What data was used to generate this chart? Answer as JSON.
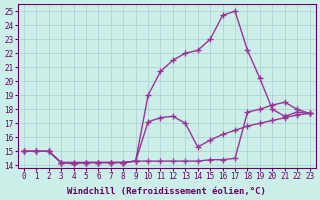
{
  "xlabel": "Windchill (Refroidissement éolien,°C)",
  "background_color": "#cceee8",
  "grid_color": "#aacccc",
  "line_color": "#993399",
  "xlim": [
    -0.5,
    23.5
  ],
  "ylim": [
    13.8,
    25.5
  ],
  "yticks": [
    14,
    15,
    16,
    17,
    18,
    19,
    20,
    21,
    22,
    23,
    24,
    25
  ],
  "xticks": [
    0,
    1,
    2,
    3,
    4,
    5,
    6,
    7,
    8,
    9,
    10,
    11,
    12,
    13,
    14,
    15,
    16,
    17,
    18,
    19,
    20,
    21,
    22,
    23
  ],
  "line1_x": [
    0,
    1,
    2,
    3,
    4,
    5,
    6,
    7,
    8,
    9,
    10,
    11,
    12,
    13,
    14,
    15,
    16,
    17,
    18,
    19,
    20,
    21,
    22,
    23
  ],
  "line1_y": [
    15.0,
    15.0,
    15.0,
    14.2,
    14.1,
    14.2,
    14.2,
    14.2,
    14.2,
    14.3,
    14.3,
    14.3,
    14.3,
    14.3,
    14.3,
    14.4,
    14.4,
    14.5,
    17.8,
    18.0,
    18.3,
    18.5,
    18.0,
    17.7
  ],
  "line2_x": [
    0,
    1,
    2,
    3,
    4,
    5,
    6,
    7,
    8,
    9,
    10,
    11,
    12,
    13,
    14,
    15,
    16,
    17,
    18,
    19,
    20,
    21,
    22,
    23
  ],
  "line2_y": [
    15.0,
    15.0,
    15.0,
    14.2,
    14.2,
    14.2,
    14.2,
    14.2,
    14.2,
    14.3,
    19.0,
    20.7,
    21.5,
    22.0,
    22.2,
    23.0,
    24.7,
    25.0,
    22.2,
    20.2,
    18.0,
    17.5,
    17.8,
    17.7
  ],
  "line3_x": [
    0,
    1,
    2,
    3,
    4,
    5,
    6,
    7,
    8,
    9,
    10,
    11,
    12,
    13,
    14,
    15,
    16,
    17,
    18,
    19,
    20,
    21,
    22,
    23
  ],
  "line3_y": [
    15.0,
    15.0,
    15.0,
    14.2,
    14.2,
    14.2,
    14.2,
    14.2,
    14.2,
    14.3,
    17.1,
    17.4,
    17.5,
    17.0,
    15.3,
    15.8,
    16.2,
    16.5,
    16.8,
    17.0,
    17.2,
    17.4,
    17.6,
    17.7
  ],
  "marker": "+",
  "markersize": 4,
  "linewidth": 1.0,
  "font_color": "#660066",
  "tick_fontsize": 5.5,
  "label_fontsize": 6.5
}
